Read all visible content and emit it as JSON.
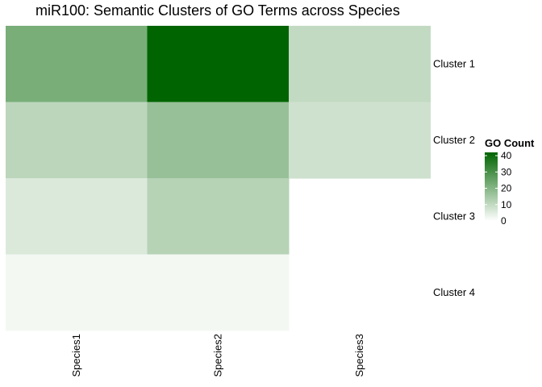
{
  "chart_data": {
    "type": "heatmap",
    "title": "miR100: Semantic Clusters of GO Terms across Species",
    "columns": [
      "Species1",
      "Species2",
      "Species3"
    ],
    "rows": [
      "Cluster 1",
      "Cluster 2",
      "Cluster 3",
      "Cluster 4"
    ],
    "values": [
      [
        22,
        42,
        10
      ],
      [
        11,
        17,
        8
      ],
      [
        6,
        12,
        null
      ],
      [
        2,
        2,
        null
      ]
    ],
    "legend": {
      "title": "GO Count",
      "ticks": [
        0,
        10,
        20,
        30,
        40
      ],
      "range": [
        0,
        42
      ],
      "low_color": "#ffffff",
      "high_color": "#006400"
    }
  }
}
